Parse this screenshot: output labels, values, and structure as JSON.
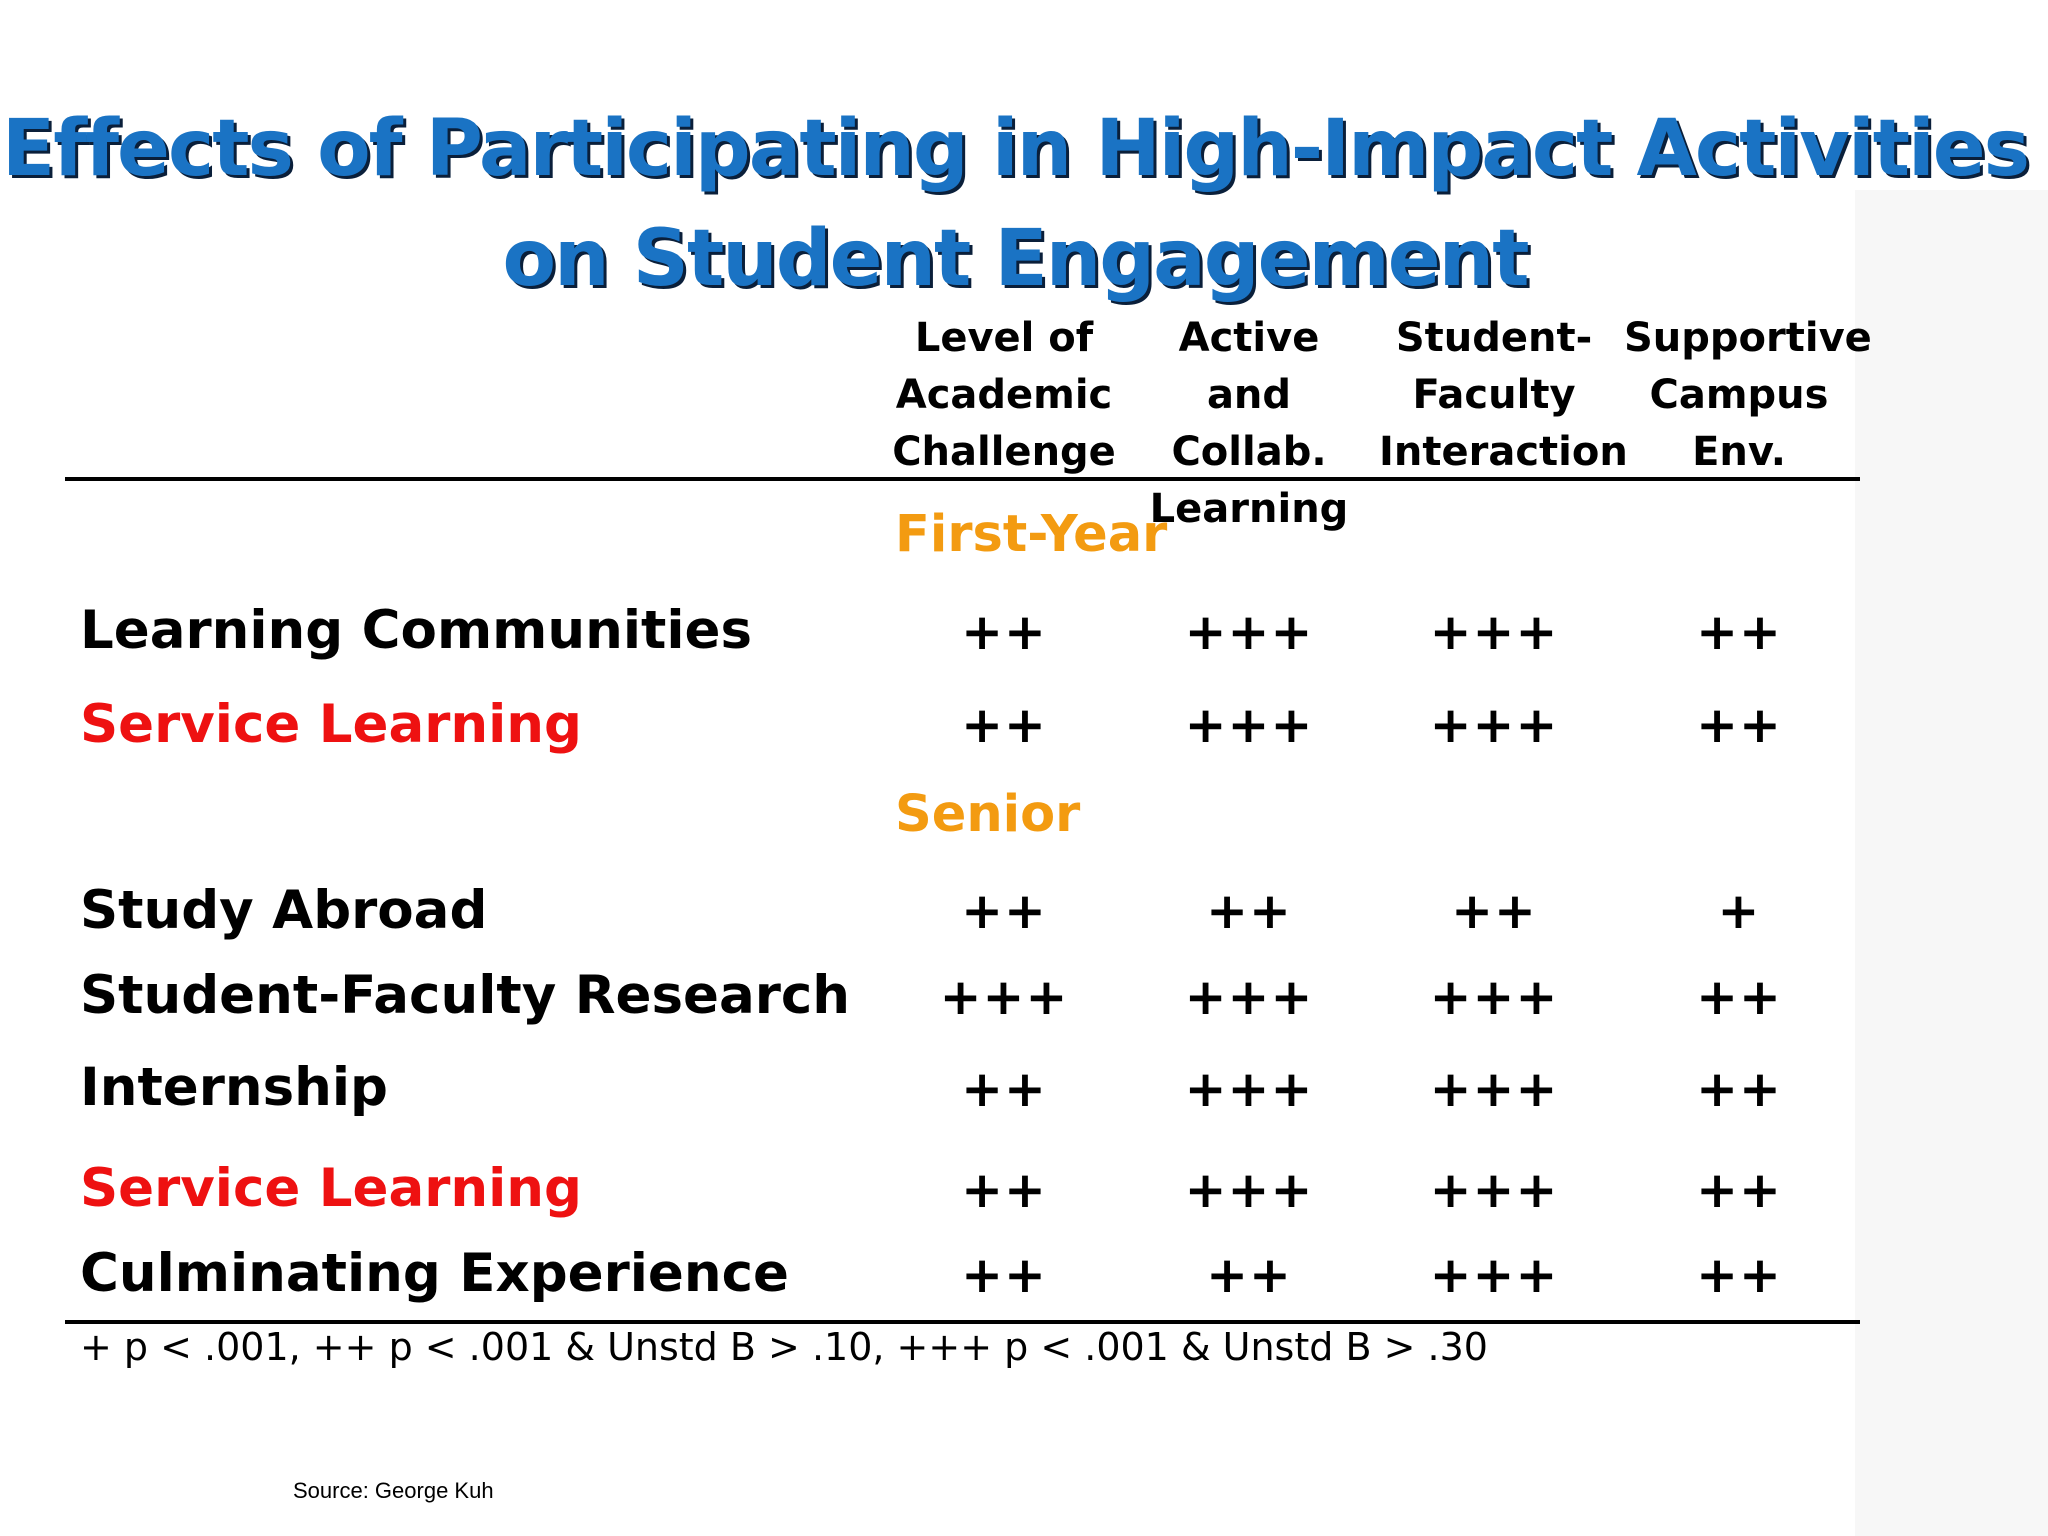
{
  "title_line1": "Effects of Participating in High-Impact Activities",
  "title_line2": "on Student Engagement",
  "columns": [
    "Level of\nAcademic\nChallenge",
    "Active and\nCollab.\nLearning",
    "Student-\nFaculty\nInteraction",
    "Supportive\nCampus\nEnv."
  ],
  "sections": [
    "First-Year",
    "Senior"
  ],
  "rows": [
    {
      "label": "Learning Communities",
      "values": [
        "++",
        "+++",
        "+++",
        "++"
      ]
    },
    {
      "label": "Service Learning",
      "values": [
        "++",
        "+++",
        "+++",
        "++"
      ]
    },
    {
      "label": "Study Abroad",
      "values": [
        "++",
        "++",
        "++",
        "+"
      ]
    },
    {
      "label": "Student-Faculty Research",
      "values": [
        "+++",
        "+++",
        "+++",
        "++"
      ]
    },
    {
      "label": "Internship",
      "values": [
        "++",
        "+++",
        "+++",
        "++"
      ]
    },
    {
      "label": "Service Learning",
      "values": [
        "++",
        "+++",
        "+++",
        "++"
      ]
    },
    {
      "label": "Culminating Experience",
      "values": [
        "++",
        "++",
        "+++",
        "++"
      ]
    }
  ],
  "colors": {
    "title": "#1a73c4",
    "section": "#f39b11",
    "highlight_row": "#ee1111"
  },
  "footnote": "+ p < .001, ++ p < .001 & Unstd B > .10, +++ p < .001 & Unstd B > .30",
  "source": "Source: George Kuh"
}
